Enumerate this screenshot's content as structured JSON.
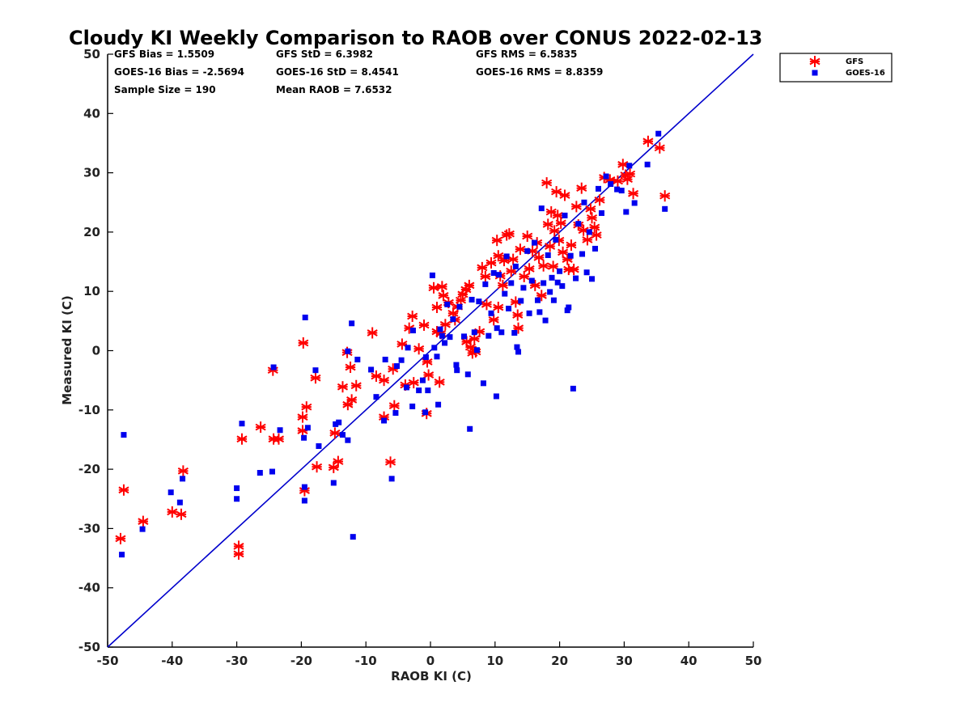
{
  "chart_data": {
    "type": "scatter",
    "title": "Cloudy KI Weekly Comparison to RAOB over CONUS 2022-02-13",
    "xlabel": "RAOB KI (C)",
    "ylabel": "Measured KI (C)",
    "xlim": [
      -50,
      50
    ],
    "ylim": [
      -50,
      50
    ],
    "x_ticks": [
      "-50",
      "-40",
      "-30",
      "-20",
      "-10",
      "0",
      "10",
      "20",
      "30",
      "40",
      "50"
    ],
    "y_ticks": [
      "50",
      "40",
      "30",
      "20",
      "10",
      "0",
      "-10",
      "-20",
      "-30",
      "-40",
      "-50"
    ],
    "grid": false,
    "legend_position": "top-right outside",
    "stats": [
      "GFS Bias = 1.5509",
      "GFS StD = 6.3982",
      "GFS RMS = 6.5835",
      "GOES-16 Bias = -2.5694",
      "GOES-16 StD = 8.4541",
      "GOES-16 RMS = 8.8359",
      "Sample Size = 190",
      "Mean RAOB = 7.6532"
    ],
    "reference_line": {
      "from": [
        -50,
        -50
      ],
      "to": [
        50,
        50
      ],
      "color": "#0000cc"
    },
    "series": [
      {
        "name": "GFS",
        "marker": "asterisk",
        "color": "#ff0000",
        "points": [
          [
            -48,
            -31.7
          ],
          [
            -47.5,
            -23.5
          ],
          [
            -44.5,
            -28.8
          ],
          [
            -40,
            -27.2
          ],
          [
            -38.6,
            -27.6
          ],
          [
            -38.3,
            -20.3
          ],
          [
            -29.7,
            -33
          ],
          [
            -29.7,
            -34.3
          ],
          [
            -29.2,
            -14.9
          ],
          [
            -26.3,
            -12.9
          ],
          [
            -24.4,
            -3.3
          ],
          [
            -24.3,
            -14.9
          ],
          [
            -23.5,
            -14.9
          ],
          [
            -19.7,
            1.3
          ],
          [
            -19.8,
            -11.2
          ],
          [
            -19.8,
            -13.5
          ],
          [
            -19.5,
            -23.6
          ],
          [
            -19.2,
            -9.5
          ],
          [
            -17.8,
            -4.6
          ],
          [
            -17.6,
            -19.6
          ],
          [
            -15,
            -19.7
          ],
          [
            -14.8,
            -13.9
          ],
          [
            -14.3,
            -18.7
          ],
          [
            -13.6,
            -6.1
          ],
          [
            -12.9,
            -0.3
          ],
          [
            -12.8,
            -9.1
          ],
          [
            -12.4,
            -2.8
          ],
          [
            -12.2,
            -8.3
          ],
          [
            -11.5,
            -5.9
          ],
          [
            -9,
            3
          ],
          [
            -8.4,
            -4.3
          ],
          [
            -7.2,
            -11.2
          ],
          [
            -7.2,
            -5
          ],
          [
            -6.2,
            -18.8
          ],
          [
            -5.8,
            -3.1
          ],
          [
            -5.6,
            -9.3
          ],
          [
            -4.4,
            1.1
          ],
          [
            -3.9,
            -5.8
          ],
          [
            -3.3,
            3.8
          ],
          [
            -2.8,
            5.8
          ],
          [
            -2.6,
            -5.4
          ],
          [
            -1.8,
            0.3
          ],
          [
            -1,
            4.3
          ],
          [
            -0.6,
            -10.6
          ],
          [
            -0.5,
            -1.9
          ],
          [
            -0.3,
            -4.1
          ],
          [
            0.5,
            10.6
          ],
          [
            1,
            3.2
          ],
          [
            1,
            7.3
          ],
          [
            1.4,
            -5.3
          ],
          [
            1.6,
            2.9
          ],
          [
            1.8,
            10.8
          ],
          [
            2,
            9.3
          ],
          [
            2.3,
            4.4
          ],
          [
            2.8,
            8.1
          ],
          [
            3.5,
            6.3
          ],
          [
            3.8,
            5.2
          ],
          [
            4.2,
            7.4
          ],
          [
            4.7,
            8.5
          ],
          [
            5,
            9.5
          ],
          [
            5.5,
            10.3
          ],
          [
            5.6,
            1.5
          ],
          [
            6,
            11
          ],
          [
            6.2,
            0.6
          ],
          [
            6.5,
            -0.4
          ],
          [
            6.8,
            2
          ],
          [
            7,
            -0.2
          ],
          [
            7.6,
            3.2
          ],
          [
            8,
            14
          ],
          [
            8.5,
            12.5
          ],
          [
            8.7,
            7.8
          ],
          [
            9.4,
            14.8
          ],
          [
            9.8,
            5.2
          ],
          [
            10.3,
            18.6
          ],
          [
            10.5,
            16
          ],
          [
            10.5,
            7.3
          ],
          [
            10.8,
            12.6
          ],
          [
            11.2,
            11
          ],
          [
            11.4,
            15.2
          ],
          [
            11.8,
            19.5
          ],
          [
            12.2,
            19.7
          ],
          [
            12.5,
            13.4
          ],
          [
            12.8,
            15.4
          ],
          [
            13.2,
            8.2
          ],
          [
            13.5,
            6
          ],
          [
            13.6,
            3.8
          ],
          [
            13.9,
            17.1
          ],
          [
            14.5,
            12.5
          ],
          [
            15,
            19.3
          ],
          [
            15.3,
            13.8
          ],
          [
            15.8,
            16.8
          ],
          [
            16.2,
            11
          ],
          [
            16.5,
            18.2
          ],
          [
            16.8,
            15.7
          ],
          [
            17.2,
            9.3
          ],
          [
            17.5,
            14.3
          ],
          [
            18,
            28.3
          ],
          [
            18.2,
            21.3
          ],
          [
            18.5,
            17.6
          ],
          [
            18.7,
            23.4
          ],
          [
            19,
            14.2
          ],
          [
            19.2,
            20.2
          ],
          [
            19.5,
            26.8
          ],
          [
            19.7,
            22.8
          ],
          [
            19.9,
            18.6
          ],
          [
            20.2,
            21.5
          ],
          [
            20.5,
            16.6
          ],
          [
            20.8,
            26.2
          ],
          [
            21.2,
            15.4
          ],
          [
            21.4,
            13.7
          ],
          [
            21.8,
            17.8
          ],
          [
            22.2,
            13.7
          ],
          [
            22.6,
            24.3
          ],
          [
            22.9,
            21.2
          ],
          [
            23.4,
            27.4
          ],
          [
            23.7,
            20.3
          ],
          [
            24.3,
            18.7
          ],
          [
            24.8,
            23.9
          ],
          [
            25,
            22.4
          ],
          [
            25.4,
            20.8
          ],
          [
            25.7,
            19.5
          ],
          [
            26.2,
            25.4
          ],
          [
            26.9,
            29.2
          ],
          [
            27.8,
            28.8
          ],
          [
            29,
            28.6
          ],
          [
            29.8,
            31.4
          ],
          [
            30.2,
            29.6
          ],
          [
            30.5,
            28.9
          ],
          [
            30.9,
            29.8
          ],
          [
            31.4,
            26.5
          ],
          [
            33.7,
            35.3
          ],
          [
            35.5,
            34.2
          ],
          [
            36.3,
            26.1
          ]
        ]
      },
      {
        "name": "GOES-16",
        "marker": "square",
        "color": "#0000ee",
        "points": [
          [
            -47.8,
            -34.4
          ],
          [
            -47.5,
            -14.2
          ],
          [
            -44.6,
            -30.1
          ],
          [
            -40.2,
            -23.9
          ],
          [
            -38.8,
            -25.6
          ],
          [
            -38.4,
            -21.6
          ],
          [
            -30,
            -23.2
          ],
          [
            -30,
            -25
          ],
          [
            -29.2,
            -12.3
          ],
          [
            -26.4,
            -20.6
          ],
          [
            -24.5,
            -20.4
          ],
          [
            -24.3,
            -2.8
          ],
          [
            -23.3,
            -13.4
          ],
          [
            -19.6,
            -14.7
          ],
          [
            -19.5,
            -25.3
          ],
          [
            -19.5,
            -23
          ],
          [
            -19.4,
            5.6
          ],
          [
            -19,
            -13
          ],
          [
            -17.8,
            -3.3
          ],
          [
            -17.3,
            -16.1
          ],
          [
            -15,
            -22.3
          ],
          [
            -14.7,
            -12.4
          ],
          [
            -14.2,
            -12.1
          ],
          [
            -13.6,
            -14.2
          ],
          [
            -12.8,
            -15.1
          ],
          [
            -12.8,
            -0.1
          ],
          [
            -12.2,
            4.6
          ],
          [
            -12,
            -31.4
          ],
          [
            -11.3,
            -1.5
          ],
          [
            -9.2,
            -3.2
          ],
          [
            -8.4,
            -7.8
          ],
          [
            -7.2,
            -11.8
          ],
          [
            -7,
            -1.5
          ],
          [
            -6,
            -21.6
          ],
          [
            -5.4,
            -10.5
          ],
          [
            -5.2,
            -2.6
          ],
          [
            -4.5,
            -1.6
          ],
          [
            -3.7,
            -6.2
          ],
          [
            -3.5,
            0.5
          ],
          [
            -2.8,
            -9.4
          ],
          [
            -2.7,
            3.4
          ],
          [
            -1.8,
            -6.7
          ],
          [
            -1.2,
            -5
          ],
          [
            -0.8,
            -10.4
          ],
          [
            -0.7,
            -1.1
          ],
          [
            -0.4,
            -6.7
          ],
          [
            0.3,
            12.7
          ],
          [
            0.6,
            0.5
          ],
          [
            1,
            -1
          ],
          [
            1.2,
            -9.1
          ],
          [
            1.5,
            3.6
          ],
          [
            1.8,
            2.5
          ],
          [
            2.2,
            1.3
          ],
          [
            2.6,
            7.8
          ],
          [
            3,
            2.3
          ],
          [
            3.5,
            5.3
          ],
          [
            4,
            -2.4
          ],
          [
            4.1,
            -3.3
          ],
          [
            4.5,
            7.4
          ],
          [
            5.2,
            2.4
          ],
          [
            5.8,
            -4
          ],
          [
            6.1,
            -13.2
          ],
          [
            6.4,
            8.6
          ],
          [
            6.8,
            3.1
          ],
          [
            7.2,
            0.1
          ],
          [
            7.5,
            8.3
          ],
          [
            8.2,
            -5.5
          ],
          [
            8.5,
            11.2
          ],
          [
            9,
            2.5
          ],
          [
            9.4,
            6.3
          ],
          [
            9.8,
            13.1
          ],
          [
            10.2,
            -7.7
          ],
          [
            10.3,
            3.8
          ],
          [
            10.6,
            12.8
          ],
          [
            11,
            3.1
          ],
          [
            11.5,
            9.6
          ],
          [
            11.8,
            15.9
          ],
          [
            12.1,
            7.1
          ],
          [
            12.5,
            11.4
          ],
          [
            13,
            3
          ],
          [
            13.2,
            14.2
          ],
          [
            13.4,
            0.6
          ],
          [
            13.6,
            -0.2
          ],
          [
            14,
            8.4
          ],
          [
            14.4,
            10.6
          ],
          [
            15,
            16.8
          ],
          [
            15.3,
            6.3
          ],
          [
            15.7,
            11.8
          ],
          [
            16.1,
            18.2
          ],
          [
            16.6,
            8.5
          ],
          [
            16.9,
            6.5
          ],
          [
            17.2,
            24
          ],
          [
            17.5,
            11.4
          ],
          [
            17.8,
            5.1
          ],
          [
            18.2,
            16.1
          ],
          [
            18.5,
            9.9
          ],
          [
            18.8,
            12.3
          ],
          [
            19.1,
            8.5
          ],
          [
            19.4,
            18.7
          ],
          [
            19.7,
            11.5
          ],
          [
            20,
            13.4
          ],
          [
            20.4,
            10.9
          ],
          [
            20.8,
            22.8
          ],
          [
            21.2,
            6.8
          ],
          [
            21.4,
            7.3
          ],
          [
            21.7,
            16
          ],
          [
            22.1,
            -6.4
          ],
          [
            22.5,
            12.2
          ],
          [
            22.9,
            21.4
          ],
          [
            23.5,
            16.3
          ],
          [
            23.8,
            25
          ],
          [
            24.2,
            13.2
          ],
          [
            24.6,
            20
          ],
          [
            25,
            12.1
          ],
          [
            25.5,
            17.2
          ],
          [
            26,
            27.3
          ],
          [
            26.5,
            23.2
          ],
          [
            27.2,
            29.4
          ],
          [
            27.9,
            28.1
          ],
          [
            28.9,
            27.2
          ],
          [
            29.6,
            27
          ],
          [
            30.3,
            23.4
          ],
          [
            30.8,
            31.2
          ],
          [
            31.6,
            24.9
          ],
          [
            33.6,
            31.4
          ],
          [
            35.3,
            36.6
          ],
          [
            36.3,
            23.9
          ]
        ]
      }
    ]
  }
}
